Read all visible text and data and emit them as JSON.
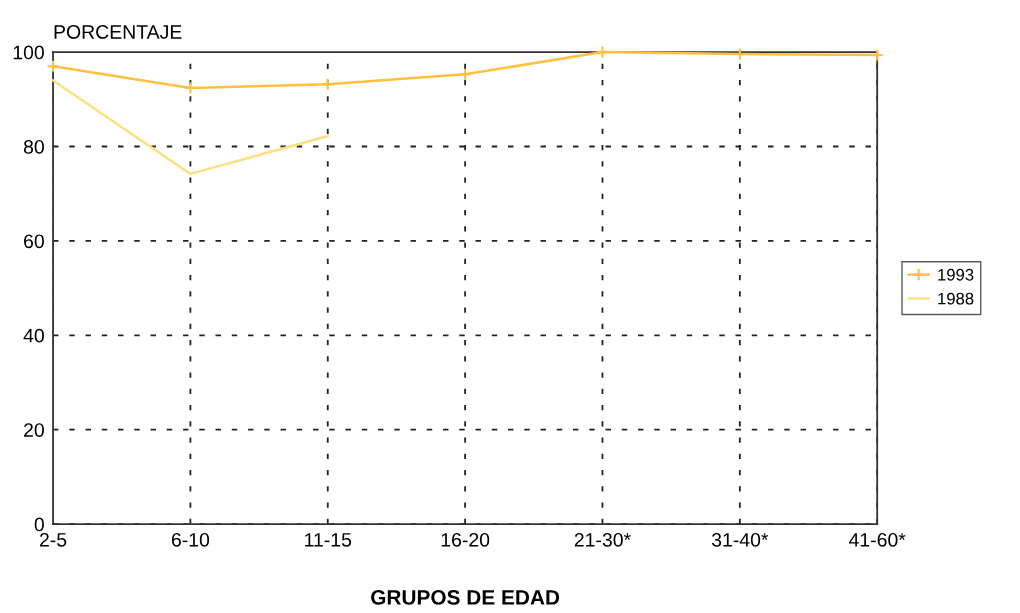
{
  "chart_data": {
    "type": "line",
    "ylabel": "PORCENTAJE",
    "xlabel": "GRUPOS DE EDAD",
    "categories": [
      "2-5",
      "6-10",
      "11-15",
      "16-20",
      "21-30*",
      "31-40*",
      "41-60*"
    ],
    "series": [
      {
        "name": "1993",
        "color": "#ffc040",
        "marker": "cross",
        "values": [
          97,
          92.4,
          93.2,
          95.3,
          100,
          99.6,
          99.4
        ]
      },
      {
        "name": "1988",
        "color": "#ffe080",
        "marker": "none",
        "values": [
          94,
          74.2,
          82.2,
          null,
          null,
          null,
          null
        ]
      }
    ],
    "ylim": [
      0,
      100
    ],
    "yticks": [
      0,
      20,
      40,
      60,
      80,
      100
    ],
    "grid": true,
    "legend": "right",
    "line_style": "solid"
  }
}
